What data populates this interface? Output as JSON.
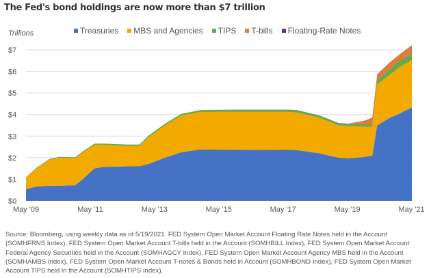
{
  "title": "The Fed's bond holdings are now more than $7 trillion",
  "source": "Source: Bloomberg, using weekly data as of 5/19/2021. FED System Open Market Account Floating Rate Notes held in the Account (SOMHFRNS Index), FED System Open Market Account T-bills held in the Account (SOMHBILL Index), FED System Open Market Account Federal Agency Securities held in the Account (SOMHAGCY Index), FED System Open Market Account Agency MBS held in the Account (SOMHAMBS Index), FED System Open Market Account T-notes & Bonds held in Account (SOMHBOND Index), FED System Open Market Account TIPS held in the Account (SOMHTIPS Index).",
  "chart_data": {
    "type": "area",
    "stacked": true,
    "title": "The Fed's bond holdings are now more than $7 trillion",
    "xlabel": "",
    "ylabel": "Trillions",
    "ylim": [
      0,
      7
    ],
    "xlim": [
      2009.37,
      2021.38
    ],
    "grid": true,
    "legend_position": "top",
    "yticks": [
      {
        "value": 0,
        "label": "$0"
      },
      {
        "value": 1,
        "label": "$1"
      },
      {
        "value": 2,
        "label": "$2"
      },
      {
        "value": 3,
        "label": "$3"
      },
      {
        "value": 4,
        "label": "$4"
      },
      {
        "value": 5,
        "label": "$5"
      },
      {
        "value": 6,
        "label": "$6"
      },
      {
        "value": 7,
        "label": "$7"
      }
    ],
    "xticks": [
      {
        "value": 2009.37,
        "label": "May '09"
      },
      {
        "value": 2011.37,
        "label": "May '11"
      },
      {
        "value": 2013.37,
        "label": "May '13"
      },
      {
        "value": 2015.37,
        "label": "May '15"
      },
      {
        "value": 2017.37,
        "label": "May '17"
      },
      {
        "value": 2019.37,
        "label": "May '19"
      },
      {
        "value": 2021.37,
        "label": "May '21"
      }
    ],
    "x": [
      2009.37,
      2009.7,
      2010.1,
      2010.4,
      2010.9,
      2011.1,
      2011.5,
      2011.8,
      2012.5,
      2012.9,
      2013.2,
      2013.7,
      2014.2,
      2014.8,
      2016.0,
      2017.5,
      2017.8,
      2018.5,
      2019.1,
      2019.4,
      2019.9,
      2020.15,
      2020.3,
      2020.7,
      2021.0,
      2021.38
    ],
    "series": [
      {
        "name": "Treasuries",
        "color": "#4472c4",
        "values": [
          0.55,
          0.66,
          0.7,
          0.7,
          0.72,
          0.95,
          1.5,
          1.57,
          1.6,
          1.6,
          1.72,
          2.0,
          2.25,
          2.38,
          2.37,
          2.36,
          2.35,
          2.2,
          2.0,
          1.97,
          2.03,
          2.1,
          3.5,
          3.85,
          4.05,
          4.33
        ]
      },
      {
        "name": "MBS and Agencies",
        "color": "#f2a900",
        "values": [
          0.52,
          0.85,
          1.2,
          1.3,
          1.26,
          1.25,
          1.1,
          1.03,
          0.95,
          0.95,
          1.25,
          1.5,
          1.7,
          1.74,
          1.75,
          1.76,
          1.75,
          1.65,
          1.5,
          1.5,
          1.4,
          1.35,
          1.9,
          2.0,
          2.15,
          2.2
        ]
      },
      {
        "name": "TIPS",
        "color": "#6aa84f",
        "values": [
          0.02,
          0.03,
          0.04,
          0.04,
          0.04,
          0.05,
          0.05,
          0.05,
          0.06,
          0.06,
          0.07,
          0.08,
          0.08,
          0.09,
          0.1,
          0.1,
          0.1,
          0.1,
          0.1,
          0.1,
          0.12,
          0.12,
          0.2,
          0.27,
          0.3,
          0.3
        ]
      },
      {
        "name": "T-bills",
        "color": "#e07b39",
        "values": [
          0,
          0,
          0,
          0,
          0,
          0,
          0,
          0,
          0,
          0,
          0,
          0,
          0,
          0,
          0,
          0,
          0,
          0,
          0,
          0,
          0.15,
          0.28,
          0.26,
          0.3,
          0.28,
          0.38
        ]
      },
      {
        "name": "Floating-Rate Notes",
        "color": "#6a2c91",
        "values": [
          0,
          0,
          0,
          0,
          0,
          0,
          0,
          0,
          0,
          0,
          0,
          0,
          0,
          0.0,
          0.01,
          0.01,
          0.01,
          0.01,
          0.01,
          0.01,
          0.01,
          0.01,
          0.01,
          0.01,
          0.01,
          0.01
        ]
      }
    ]
  }
}
